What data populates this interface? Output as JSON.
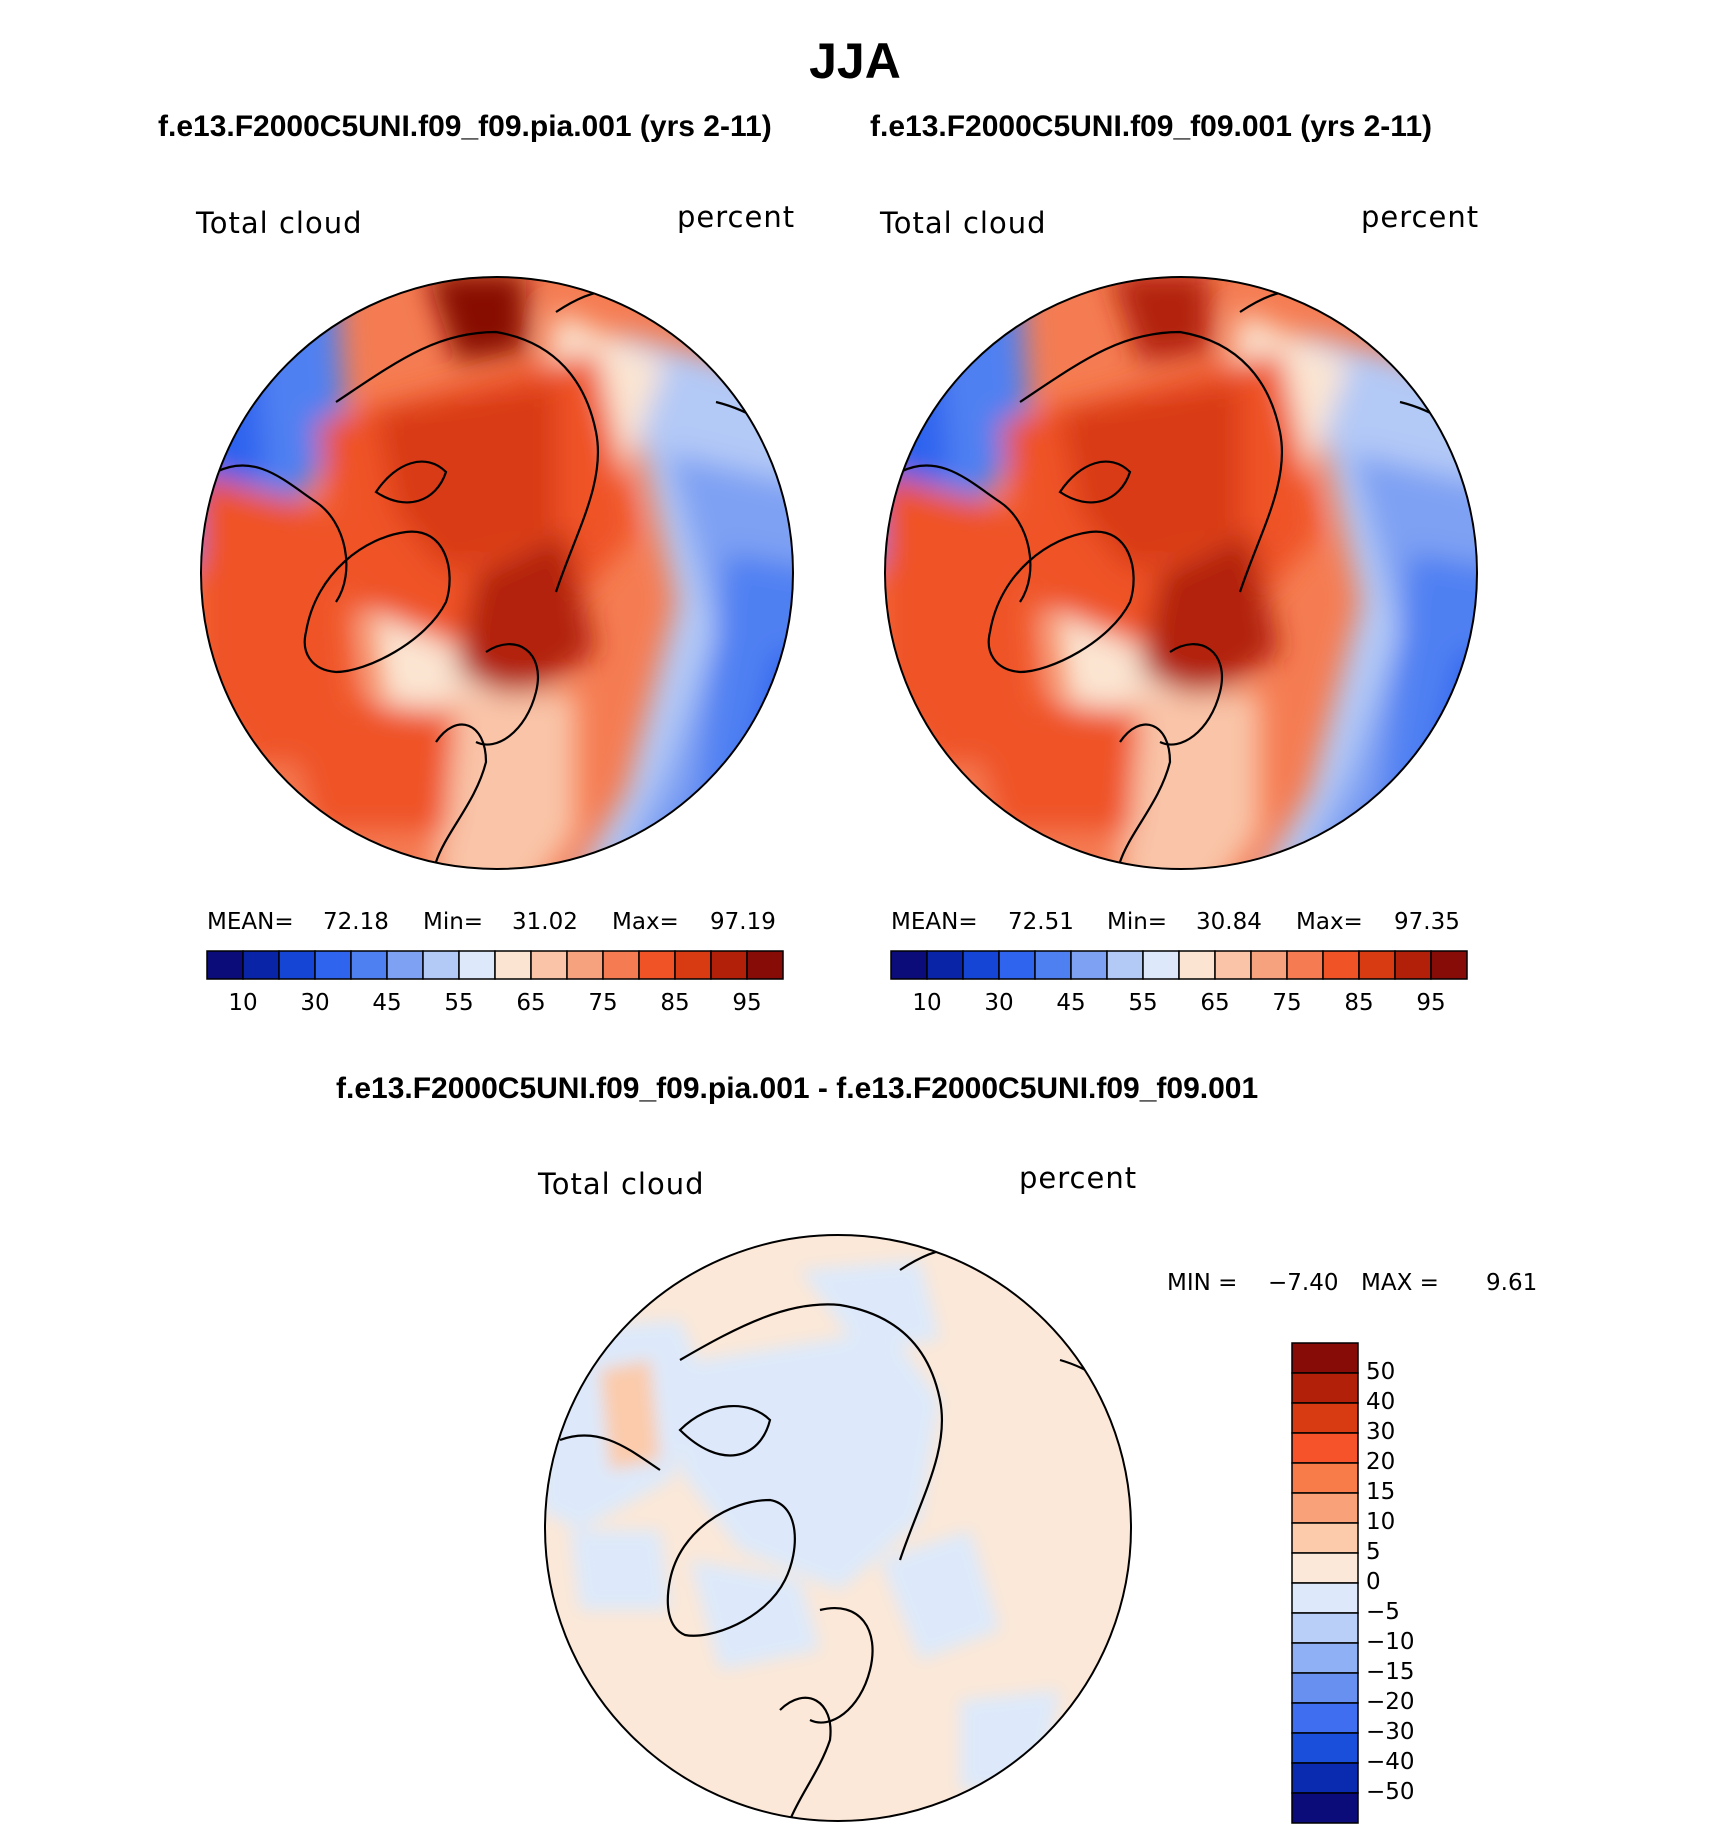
{
  "season_title": "JJA",
  "panels": {
    "left": {
      "case_title": "f.e13.F2000C5UNI.f09_f09.pia.001 (yrs 2-11)",
      "variable": "Total cloud",
      "units": "percent",
      "stats": {
        "mean_label": "MEAN=",
        "mean": "72.18",
        "min_label": "Min=",
        "min": "31.02",
        "max_label": "Max=",
        "max": "97.19"
      }
    },
    "right": {
      "case_title": "f.e13.F2000C5UNI.f09_f09.001 (yrs 2-11)",
      "variable": "Total cloud",
      "units": "percent",
      "stats": {
        "mean_label": "MEAN=",
        "mean": "72.51",
        "min_label": "Min=",
        "min": "30.84",
        "max_label": "Max=",
        "max": "97.35"
      }
    },
    "diff": {
      "case_title": "f.e13.F2000C5UNI.f09_f09.pia.001 - f.e13.F2000C5UNI.f09_f09.001",
      "variable": "Total cloud",
      "units": "percent",
      "stats": {
        "min_label": "MIN =",
        "min": "−7.40",
        "max_label": "MAX =",
        "max": "9.61"
      }
    }
  },
  "colorbar_main": {
    "colors": [
      "#0b0b7a",
      "#0a24a8",
      "#1445d4",
      "#2f64ef",
      "#4f80f2",
      "#7fa1f3",
      "#b3c9f6",
      "#dde9fa",
      "#fbe5d2",
      "#f9c4a8",
      "#f7a27e",
      "#f57c52",
      "#ef5326",
      "#d83a12",
      "#b2200a",
      "#870b06"
    ],
    "labels": [
      "10",
      "30",
      "45",
      "55",
      "65",
      "75",
      "85",
      "95"
    ]
  },
  "colorbar_diff": {
    "colors": [
      "#870b06",
      "#b2200a",
      "#d83a12",
      "#f7532a",
      "#f87c4a",
      "#f9a179",
      "#fbcbab",
      "#fbe8d8",
      "#dde9fa",
      "#b9cff7",
      "#8fb0f4",
      "#6790f1",
      "#3f6ff0",
      "#1a4fdc",
      "#0a2ab0",
      "#0b0b7a"
    ],
    "labels": [
      "50",
      "40",
      "30",
      "20",
      "15",
      "10",
      "5",
      "0",
      "−5",
      "−10",
      "−15",
      "−20",
      "−30",
      "−40",
      "−50"
    ]
  }
}
